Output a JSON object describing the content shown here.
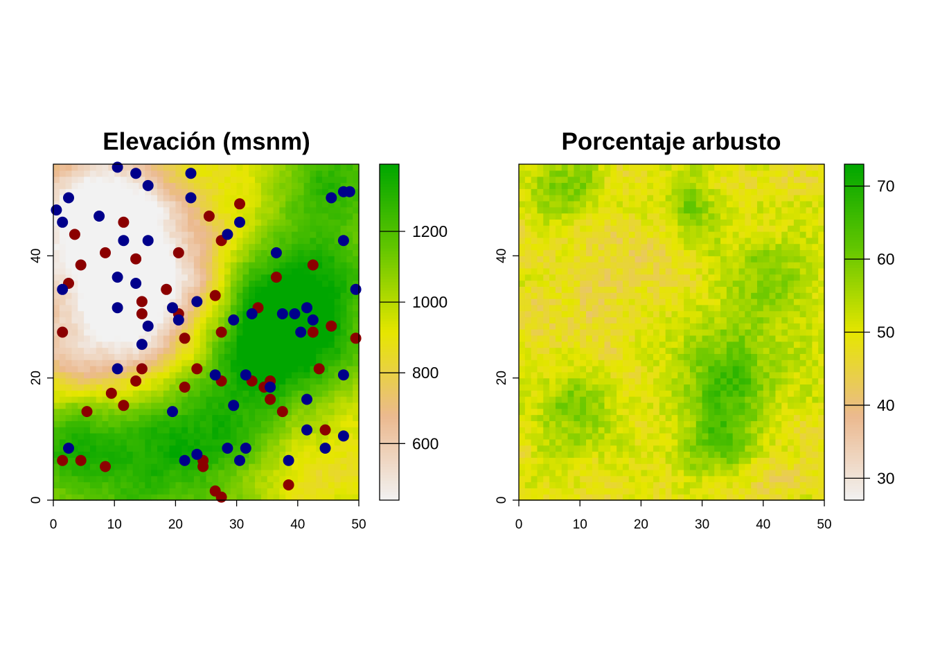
{
  "chart_data": [
    {
      "type": "heatmap",
      "title": "Elevación (msnm)",
      "xlabel": "",
      "ylabel": "",
      "xlim": [
        0,
        50
      ],
      "ylim": [
        0,
        55
      ],
      "x_ticks": [
        "0",
        "10",
        "20",
        "30",
        "40",
        "50"
      ],
      "y_ticks": [
        "0",
        "20",
        "40"
      ],
      "grid": false,
      "raster_resolution": [
        50,
        55
      ],
      "value_range": [
        440,
        1390
      ],
      "legend": {
        "position": "right",
        "ticks": [
          "600",
          "800",
          "1000",
          "1200"
        ],
        "tick_values": [
          600,
          800,
          1000,
          1200
        ],
        "range": [
          440,
          1390
        ]
      },
      "colormap": [
        "#f2f2f2",
        "#ebb98f",
        "#e6e600",
        "#63c600",
        "#00a600"
      ],
      "spatial_pattern": [
        {
          "x": 8,
          "y": 48,
          "v": 470,
          "r": 7
        },
        {
          "x": 10,
          "y": 38,
          "v": 650,
          "r": 12
        },
        {
          "x": 15,
          "y": 30,
          "v": 640,
          "r": 9
        },
        {
          "x": 5,
          "y": 22,
          "v": 760,
          "r": 8
        },
        {
          "x": 23,
          "y": 38,
          "v": 830,
          "r": 9
        },
        {
          "x": 40,
          "y": 34,
          "v": 1330,
          "r": 9
        },
        {
          "x": 38,
          "y": 26,
          "v": 1260,
          "r": 8
        },
        {
          "x": 46,
          "y": 52,
          "v": 1250,
          "r": 6
        },
        {
          "x": 30,
          "y": 26,
          "v": 1150,
          "r": 8
        },
        {
          "x": 14,
          "y": 8,
          "v": 1270,
          "r": 10
        },
        {
          "x": 3,
          "y": 10,
          "v": 1220,
          "r": 6
        },
        {
          "x": 24,
          "y": 12,
          "v": 1120,
          "r": 8
        },
        {
          "x": 45,
          "y": 10,
          "v": 900,
          "r": 8
        },
        {
          "x": 38,
          "y": 4,
          "v": 880,
          "r": 6
        },
        {
          "x": 30,
          "y": 8,
          "v": 1050,
          "r": 7
        }
      ],
      "series": [
        {
          "color": "#8b0000",
          "points": [
            [
              3.5,
              43.5
            ],
            [
              4.5,
              38.5
            ],
            [
              2.5,
              35.5
            ],
            [
              8.5,
              40.5
            ],
            [
              11.5,
              45.5
            ],
            [
              13.5,
              39.5
            ],
            [
              14.5,
              32.5
            ],
            [
              14.5,
              30.5
            ],
            [
              18.5,
              34.5
            ],
            [
              20.5,
              40.5
            ],
            [
              25.5,
              46.5
            ],
            [
              27.5,
              42.5
            ],
            [
              30.5,
              48.5
            ],
            [
              26.5,
              33.5
            ],
            [
              20.5,
              30.5
            ],
            [
              21.5,
              26.5
            ],
            [
              27.5,
              27.5
            ],
            [
              33.5,
              31.5
            ],
            [
              36.5,
              36.5
            ],
            [
              42.5,
              38.5
            ],
            [
              42.5,
              27.5
            ],
            [
              45.5,
              28.5
            ],
            [
              49.5,
              26.5
            ],
            [
              1.5,
              27.5
            ],
            [
              23.5,
              21.5
            ],
            [
              27.5,
              19.5
            ],
            [
              32.5,
              19.5
            ],
            [
              34.5,
              18.5
            ],
            [
              35.5,
              19.5
            ],
            [
              35.5,
              16.5
            ],
            [
              37.5,
              14.5
            ],
            [
              43.5,
              21.5
            ],
            [
              44.5,
              11.5
            ],
            [
              13.5,
              19.5
            ],
            [
              14.5,
              21.5
            ],
            [
              21.5,
              18.5
            ],
            [
              9.5,
              17.5
            ],
            [
              11.5,
              15.5
            ],
            [
              5.5,
              14.5
            ],
            [
              1.5,
              6.5
            ],
            [
              4.5,
              6.5
            ],
            [
              8.5,
              5.5
            ],
            [
              24.5,
              6.5
            ],
            [
              24.5,
              5.5
            ],
            [
              26.5,
              1.5
            ],
            [
              27.5,
              0.5
            ],
            [
              38.5,
              2.5
            ]
          ]
        },
        {
          "color": "#00008b",
          "points": [
            [
              10.5,
              54.5
            ],
            [
              13.5,
              53.5
            ],
            [
              15.5,
              51.5
            ],
            [
              22.5,
              53.5
            ],
            [
              22.5,
              49.5
            ],
            [
              0.5,
              47.5
            ],
            [
              2.5,
              49.5
            ],
            [
              7.5,
              46.5
            ],
            [
              1.5,
              45.5
            ],
            [
              11.5,
              42.5
            ],
            [
              15.5,
              42.5
            ],
            [
              28.5,
              43.5
            ],
            [
              30.5,
              45.5
            ],
            [
              36.5,
              40.5
            ],
            [
              45.5,
              49.5
            ],
            [
              47.5,
              50.5
            ],
            [
              48.5,
              50.5
            ],
            [
              47.5,
              42.5
            ],
            [
              10.5,
              36.5
            ],
            [
              13.5,
              35.5
            ],
            [
              1.5,
              34.5
            ],
            [
              10.5,
              31.5
            ],
            [
              19.5,
              31.5
            ],
            [
              23.5,
              32.5
            ],
            [
              20.5,
              29.5
            ],
            [
              29.5,
              29.5
            ],
            [
              32.5,
              30.5
            ],
            [
              37.5,
              30.5
            ],
            [
              39.5,
              30.5
            ],
            [
              41.5,
              31.5
            ],
            [
              42.5,
              29.5
            ],
            [
              40.5,
              27.5
            ],
            [
              49.5,
              34.5
            ],
            [
              15.5,
              28.5
            ],
            [
              14.5,
              25.5
            ],
            [
              10.5,
              21.5
            ],
            [
              26.5,
              20.5
            ],
            [
              31.5,
              20.5
            ],
            [
              35.5,
              18.5
            ],
            [
              47.5,
              20.5
            ],
            [
              41.5,
              16.5
            ],
            [
              29.5,
              15.5
            ],
            [
              19.5,
              14.5
            ],
            [
              41.5,
              11.5
            ],
            [
              47.5,
              10.5
            ],
            [
              44.5,
              8.5
            ],
            [
              2.5,
              8.5
            ],
            [
              23.5,
              7.5
            ],
            [
              28.5,
              8.5
            ],
            [
              31.5,
              8.5
            ],
            [
              21.5,
              6.5
            ],
            [
              30.5,
              6.5
            ],
            [
              38.5,
              6.5
            ]
          ]
        }
      ]
    },
    {
      "type": "heatmap",
      "title": "Porcentaje arbusto",
      "xlabel": "",
      "ylabel": "",
      "xlim": [
        0,
        50
      ],
      "ylim": [
        0,
        55
      ],
      "x_ticks": [
        "0",
        "10",
        "20",
        "30",
        "40",
        "50"
      ],
      "y_ticks": [
        "0",
        "20",
        "40"
      ],
      "grid": false,
      "raster_resolution": [
        50,
        55
      ],
      "value_range": [
        27,
        73
      ],
      "legend": {
        "position": "right",
        "ticks": [
          "30",
          "40",
          "50",
          "60",
          "70"
        ],
        "tick_values": [
          30,
          40,
          50,
          60,
          70
        ],
        "range": [
          27,
          73
        ]
      },
      "colormap": [
        "#f2f2f2",
        "#ebb98f",
        "#e6e600",
        "#63c600",
        "#00a600"
      ],
      "spatial_pattern": [
        {
          "x": 35,
          "y": 20,
          "v": 64,
          "r": 6
        },
        {
          "x": 10,
          "y": 15,
          "v": 61,
          "r": 5
        },
        {
          "x": 33,
          "y": 9,
          "v": 62,
          "r": 4
        },
        {
          "x": 8,
          "y": 52,
          "v": 60,
          "r": 4
        },
        {
          "x": 42,
          "y": 36,
          "v": 60,
          "r": 5
        },
        {
          "x": 28,
          "y": 48,
          "v": 58,
          "r": 4
        },
        {
          "x": 12,
          "y": 30,
          "v": 46,
          "r": 8
        },
        {
          "x": 20,
          "y": 42,
          "v": 47,
          "r": 6
        },
        {
          "x": 40,
          "y": 5,
          "v": 45,
          "r": 5
        }
      ]
    }
  ]
}
